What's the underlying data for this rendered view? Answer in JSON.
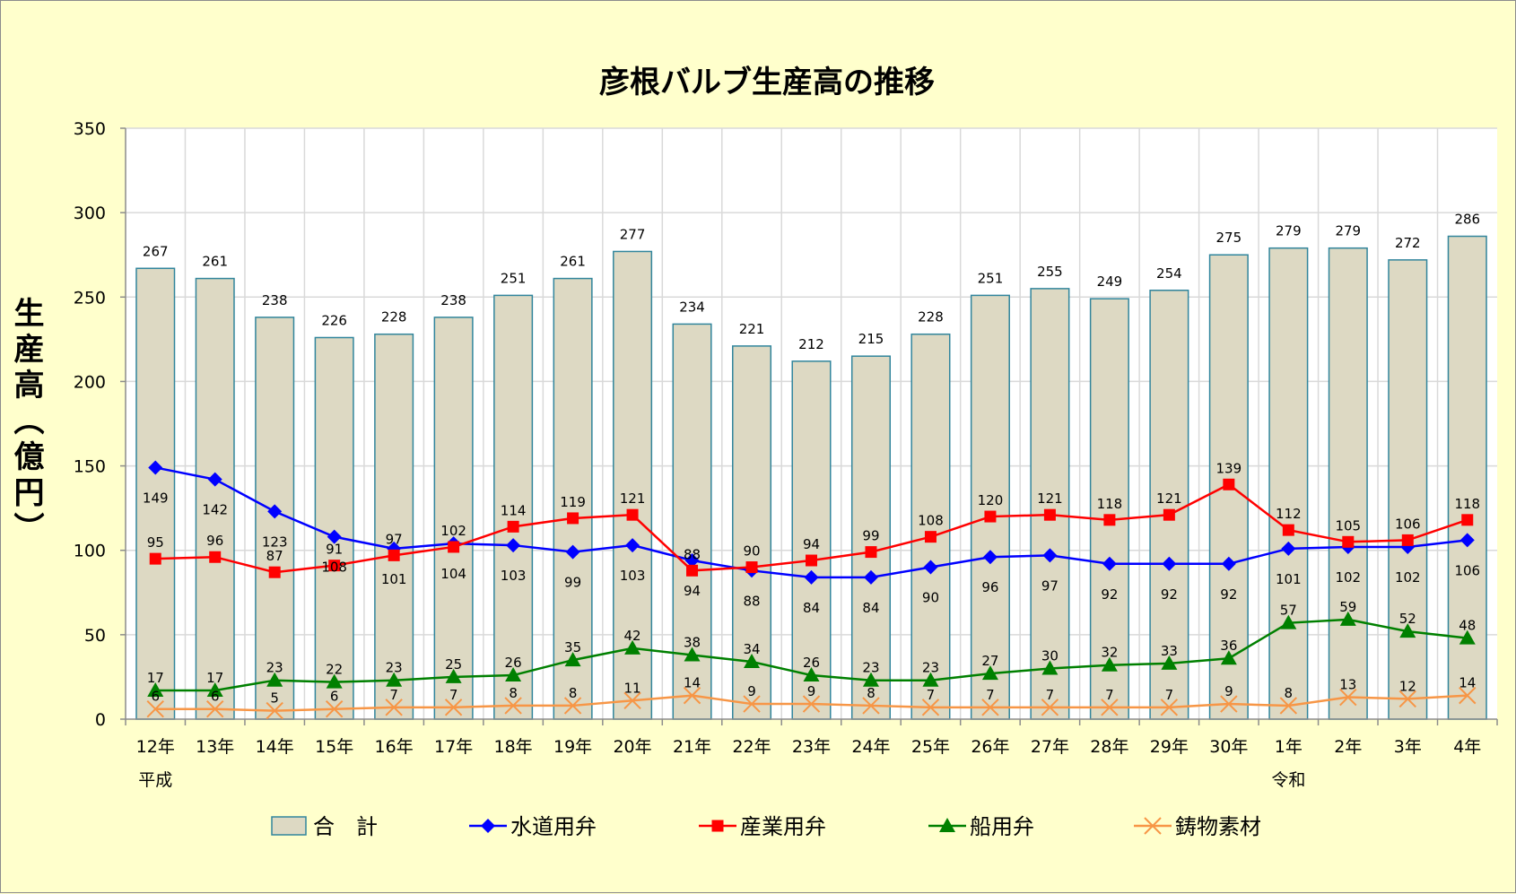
{
  "chart_data": {
    "type": "bar",
    "title": "彦根バルブ生産高の推移",
    "ylabel": "生産高（億円）",
    "ylim": [
      0,
      350
    ],
    "yticks": [
      0,
      50,
      100,
      150,
      200,
      250,
      300,
      350
    ],
    "grid": true,
    "legend_position": "bottom",
    "categories": [
      "12年",
      "13年",
      "14年",
      "15年",
      "16年",
      "17年",
      "18年",
      "19年",
      "20年",
      "21年",
      "22年",
      "23年",
      "24年",
      "25年",
      "26年",
      "27年",
      "28年",
      "29年",
      "30年",
      "1年",
      "2年",
      "3年",
      "4年"
    ],
    "era_labels": [
      {
        "index": 0,
        "text": "平成"
      },
      {
        "index": 19,
        "text": "令和"
      }
    ],
    "series": [
      {
        "name": "合　計",
        "type": "bar",
        "color": "#ddd9c3",
        "edge_color": "#31859c",
        "values": [
          267,
          261,
          238,
          226,
          228,
          238,
          251,
          261,
          277,
          234,
          221,
          212,
          215,
          228,
          251,
          255,
          249,
          254,
          275,
          279,
          279,
          272,
          286
        ]
      },
      {
        "name": "水道用弁",
        "type": "line",
        "marker": "diamond",
        "color": "#0000ff",
        "values": [
          149,
          142,
          123,
          108,
          101,
          104,
          103,
          99,
          103,
          94,
          88,
          84,
          84,
          90,
          96,
          97,
          92,
          92,
          92,
          101,
          102,
          102,
          106
        ]
      },
      {
        "name": "産業用弁",
        "type": "line",
        "marker": "square",
        "color": "#ff0000",
        "values": [
          95,
          96,
          87,
          91,
          97,
          102,
          114,
          119,
          121,
          88,
          90,
          94,
          99,
          108,
          120,
          121,
          118,
          121,
          139,
          112,
          105,
          106,
          118
        ]
      },
      {
        "name": "船用弁",
        "type": "line",
        "marker": "triangle",
        "color": "#008000",
        "values": [
          17,
          17,
          23,
          22,
          23,
          25,
          26,
          35,
          42,
          38,
          34,
          26,
          23,
          23,
          27,
          30,
          32,
          33,
          36,
          57,
          59,
          52,
          48
        ]
      },
      {
        "name": "鋳物素材",
        "type": "line",
        "marker": "x",
        "color": "#f79646",
        "values": [
          6,
          6,
          5,
          6,
          7,
          7,
          8,
          8,
          11,
          14,
          9,
          9,
          8,
          7,
          7,
          7,
          7,
          7,
          9,
          8,
          13,
          12,
          14
        ]
      }
    ]
  }
}
